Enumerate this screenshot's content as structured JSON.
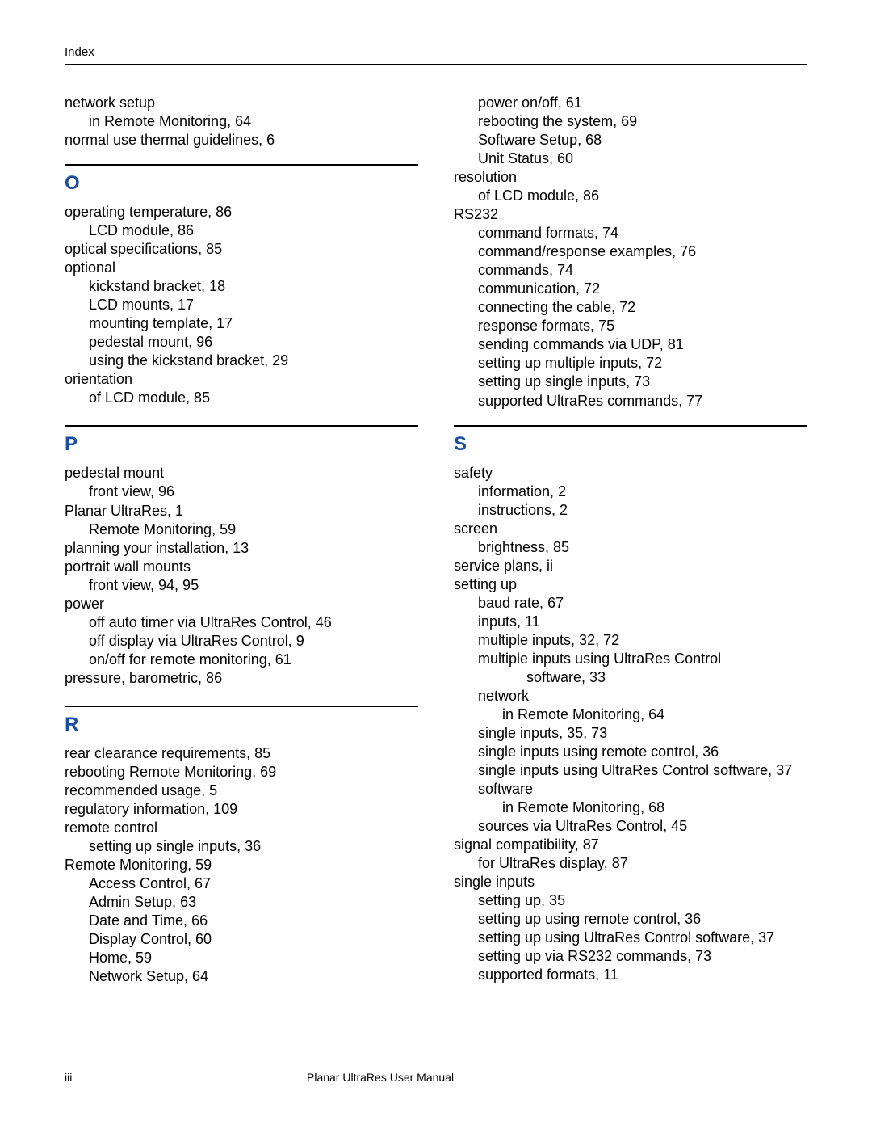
{
  "header": {
    "label": "Index"
  },
  "footer": {
    "page_number": "iii",
    "title": "Planar UltraRes User Manual"
  },
  "colors": {
    "letter_heading": "#1a4e9e",
    "text": "#000000",
    "rule": "#000000",
    "background": "#ffffff"
  },
  "typography": {
    "body_fontsize_pt": 13,
    "letter_fontsize_pt": 18,
    "header_fontsize_pt": 11,
    "footer_fontsize_pt": 10,
    "line_height": 1.28
  },
  "left_column": {
    "top_continuation": [
      {
        "level": 0,
        "text": "network setup"
      },
      {
        "level": 1,
        "text": "in Remote Monitoring,  64"
      },
      {
        "level": 0,
        "text": "normal use thermal guidelines,  6"
      }
    ],
    "sections": [
      {
        "letter": "O",
        "entries": [
          {
            "level": 0,
            "text": "operating temperature,  86"
          },
          {
            "level": 1,
            "text": "LCD module,  86"
          },
          {
            "level": 0,
            "text": "optical specifications,  85"
          },
          {
            "level": 0,
            "text": "optional"
          },
          {
            "level": 1,
            "text": "kickstand bracket,  18"
          },
          {
            "level": 1,
            "text": "LCD mounts,  17"
          },
          {
            "level": 1,
            "text": "mounting template,  17"
          },
          {
            "level": 1,
            "text": "pedestal mount,  96"
          },
          {
            "level": 1,
            "text": "using the kickstand bracket,  29"
          },
          {
            "level": 0,
            "text": "orientation"
          },
          {
            "level": 1,
            "text": "of LCD module,  85"
          }
        ]
      },
      {
        "letter": "P",
        "entries": [
          {
            "level": 0,
            "text": "pedestal mount"
          },
          {
            "level": 1,
            "text": "front view,  96"
          },
          {
            "level": 0,
            "text": "Planar UltraRes,  1"
          },
          {
            "level": 1,
            "text": "Remote Monitoring,  59"
          },
          {
            "level": 0,
            "text": "planning your installation,  13"
          },
          {
            "level": 0,
            "text": "portrait wall mounts"
          },
          {
            "level": 1,
            "text": "front view,  94, 95"
          },
          {
            "level": 0,
            "text": "power"
          },
          {
            "level": 1,
            "text": "off auto timer via UltraRes Control,  46"
          },
          {
            "level": 1,
            "text": "off display via UltraRes Control,  9"
          },
          {
            "level": 1,
            "text": "on/off for remote monitoring,  61"
          },
          {
            "level": 0,
            "text": "pressure, barometric,  86"
          }
        ]
      },
      {
        "letter": "R",
        "entries": [
          {
            "level": 0,
            "text": "rear clearance requirements,  85"
          },
          {
            "level": 0,
            "text": "rebooting Remote Monitoring,  69"
          },
          {
            "level": 0,
            "text": "recommended usage,  5"
          },
          {
            "level": 0,
            "text": "regulatory information,  109"
          },
          {
            "level": 0,
            "text": "remote control"
          },
          {
            "level": 1,
            "text": "setting up single inputs,  36"
          },
          {
            "level": 0,
            "text": "Remote Monitoring,  59"
          },
          {
            "level": 1,
            "text": "Access Control,  67"
          },
          {
            "level": 1,
            "text": "Admin Setup,  63"
          },
          {
            "level": 1,
            "text": "Date and Time,  66"
          },
          {
            "level": 1,
            "text": "Display Control,  60"
          },
          {
            "level": 1,
            "text": "Home,  59"
          },
          {
            "level": 1,
            "text": "Network Setup,  64"
          }
        ]
      }
    ]
  },
  "right_column": {
    "top_continuation": [
      {
        "level": 1,
        "text": "power on/off,  61"
      },
      {
        "level": 1,
        "text": "rebooting the system,  69"
      },
      {
        "level": 1,
        "text": "Software Setup,  68"
      },
      {
        "level": 1,
        "text": "Unit Status,  60"
      },
      {
        "level": 0,
        "text": "resolution"
      },
      {
        "level": 1,
        "text": "of LCD module,  86"
      },
      {
        "level": 0,
        "text": "RS232"
      },
      {
        "level": 1,
        "text": "command formats,  74"
      },
      {
        "level": 1,
        "text": "command/response examples,  76"
      },
      {
        "level": 1,
        "text": "commands,  74"
      },
      {
        "level": 1,
        "text": "communication,  72"
      },
      {
        "level": 1,
        "text": "connecting the cable,  72"
      },
      {
        "level": 1,
        "text": "response formats,  75"
      },
      {
        "level": 1,
        "text": "sending commands via UDP,  81"
      },
      {
        "level": 1,
        "text": "setting up multiple inputs,  72"
      },
      {
        "level": 1,
        "text": "setting up single inputs,  73"
      },
      {
        "level": 1,
        "text": "supported UltraRes commands,  77"
      }
    ],
    "sections": [
      {
        "letter": "S",
        "entries": [
          {
            "level": 0,
            "text": "safety"
          },
          {
            "level": 1,
            "text": "information,  2"
          },
          {
            "level": 1,
            "text": "instructions,  2"
          },
          {
            "level": 0,
            "text": "screen"
          },
          {
            "level": 1,
            "text": "brightness,  85"
          },
          {
            "level": 0,
            "text": "service plans,  ii"
          },
          {
            "level": 0,
            "text": "setting up"
          },
          {
            "level": 1,
            "text": "baud rate,  67"
          },
          {
            "level": 1,
            "text": "inputs,  11"
          },
          {
            "level": 1,
            "text": "multiple inputs,  32, 72"
          },
          {
            "level": 1,
            "text": "multiple inputs using UltraRes Control"
          },
          {
            "level": 3,
            "text": "software,  33"
          },
          {
            "level": 1,
            "text": "network"
          },
          {
            "level": 2,
            "text": "in Remote Monitoring,  64"
          },
          {
            "level": 1,
            "text": "single inputs,  35, 73"
          },
          {
            "level": 1,
            "text": "single inputs using remote control,  36"
          },
          {
            "level": 1,
            "text": "single inputs using UltraRes Control software,  37"
          },
          {
            "level": 1,
            "text": "software"
          },
          {
            "level": 2,
            "text": "in Remote Monitoring,  68"
          },
          {
            "level": 1,
            "text": "sources via UltraRes Control,  45"
          },
          {
            "level": 0,
            "text": "signal compatibility,  87"
          },
          {
            "level": 1,
            "text": "for UltraRes display,  87"
          },
          {
            "level": 0,
            "text": "single inputs"
          },
          {
            "level": 1,
            "text": "setting up,  35"
          },
          {
            "level": 1,
            "text": "setting up using remote control,  36"
          },
          {
            "level": 1,
            "text": "setting up using UltraRes Control software,  37"
          },
          {
            "level": 1,
            "text": "setting up via RS232 commands,  73"
          },
          {
            "level": 1,
            "text": "supported formats,  11"
          }
        ]
      }
    ]
  }
}
